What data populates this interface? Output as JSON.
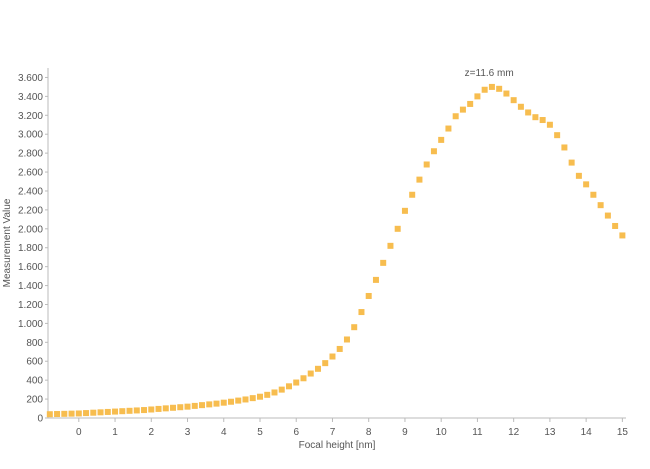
{
  "chart_data": {
    "type": "scatter",
    "title": "",
    "xlabel": "Focal height [nm]",
    "ylabel": "Measurement Value",
    "xlim": [
      -0.85,
      15.1
    ],
    "ylim": [
      0,
      3700
    ],
    "grid": false,
    "legend": "none",
    "marker_color": "#f7bd4f",
    "axis_color": "#bbbbbb",
    "x_ticks": [
      {
        "value": 0,
        "label": "0"
      },
      {
        "value": 1,
        "label": "1"
      },
      {
        "value": 2,
        "label": "2"
      },
      {
        "value": 3,
        "label": "3"
      },
      {
        "value": 4,
        "label": "4"
      },
      {
        "value": 5,
        "label": "5"
      },
      {
        "value": 6,
        "label": "6"
      },
      {
        "value": 7,
        "label": "7"
      },
      {
        "value": 8,
        "label": "8"
      },
      {
        "value": 9,
        "label": "9"
      },
      {
        "value": 10,
        "label": "10"
      },
      {
        "value": 11,
        "label": "11"
      },
      {
        "value": 12,
        "label": "12"
      },
      {
        "value": 13,
        "label": "13"
      },
      {
        "value": 14,
        "label": "14"
      },
      {
        "value": 15,
        "label": "15"
      }
    ],
    "y_ticks": [
      {
        "value": 0,
        "label": "0"
      },
      {
        "value": 200,
        "label": "200"
      },
      {
        "value": 400,
        "label": "400"
      },
      {
        "value": 600,
        "label": "600"
      },
      {
        "value": 800,
        "label": "800"
      },
      {
        "value": 1000,
        "label": "1.000"
      },
      {
        "value": 1200,
        "label": "1.200"
      },
      {
        "value": 1400,
        "label": "1.400"
      },
      {
        "value": 1600,
        "label": "1.600"
      },
      {
        "value": 1800,
        "label": "1.800"
      },
      {
        "value": 2000,
        "label": "2.000"
      },
      {
        "value": 2200,
        "label": "2.200"
      },
      {
        "value": 2400,
        "label": "2.400"
      },
      {
        "value": 2600,
        "label": "2.600"
      },
      {
        "value": 2800,
        "label": "2.800"
      },
      {
        "value": 3000,
        "label": "3.000"
      },
      {
        "value": 3200,
        "label": "3.200"
      },
      {
        "value": 3400,
        "label": "3.400"
      },
      {
        "value": 3600,
        "label": "3.600"
      }
    ],
    "annotations": [
      {
        "text": "z=11.6 mm",
        "x": 11.6,
        "y": 3700
      }
    ],
    "series": [
      {
        "x": [
          -0.8,
          -0.6,
          -0.4,
          -0.2,
          0.0,
          0.2,
          0.4,
          0.6,
          0.8,
          1.0,
          1.2,
          1.4,
          1.6,
          1.8,
          2.0,
          2.2,
          2.4,
          2.6,
          2.8,
          3.0,
          3.2,
          3.4,
          3.6,
          3.8,
          4.0,
          4.2,
          4.4,
          4.6,
          4.8,
          5.0,
          5.2,
          5.4,
          5.6,
          5.8,
          6.0,
          6.2,
          6.4,
          6.6,
          6.8,
          7.0,
          7.2,
          7.4,
          7.6,
          7.8,
          8.0,
          8.2,
          8.4,
          8.6,
          8.8,
          9.0,
          9.2,
          9.4,
          9.6,
          9.8,
          10.0,
          10.2,
          10.4,
          10.6,
          10.8,
          11.0,
          11.2,
          11.4,
          11.6,
          11.8,
          12.0,
          12.2,
          12.4,
          12.6,
          12.8,
          13.0,
          13.2,
          13.4,
          13.6,
          13.8,
          14.0,
          14.2,
          14.4,
          14.6,
          14.8,
          15.0
        ],
        "y": [
          40,
          42,
          44,
          46,
          48,
          52,
          56,
          60,
          64,
          68,
          72,
          76,
          80,
          84,
          90,
          96,
          102,
          108,
          114,
          120,
          128,
          136,
          144,
          152,
          162,
          172,
          184,
          196,
          210,
          225,
          245,
          270,
          300,
          335,
          375,
          420,
          470,
          520,
          580,
          650,
          730,
          830,
          960,
          1120,
          1290,
          1460,
          1640,
          1820,
          2000,
          2190,
          2360,
          2520,
          2680,
          2820,
          2940,
          3060,
          3190,
          3260,
          3320,
          3400,
          3470,
          3500,
          3480,
          3430,
          3360,
          3290,
          3230,
          3180,
          3150,
          3100,
          2990,
          2860,
          2700,
          2560,
          2470,
          2360,
          2250,
          2140,
          2030,
          1930
        ]
      }
    ]
  }
}
